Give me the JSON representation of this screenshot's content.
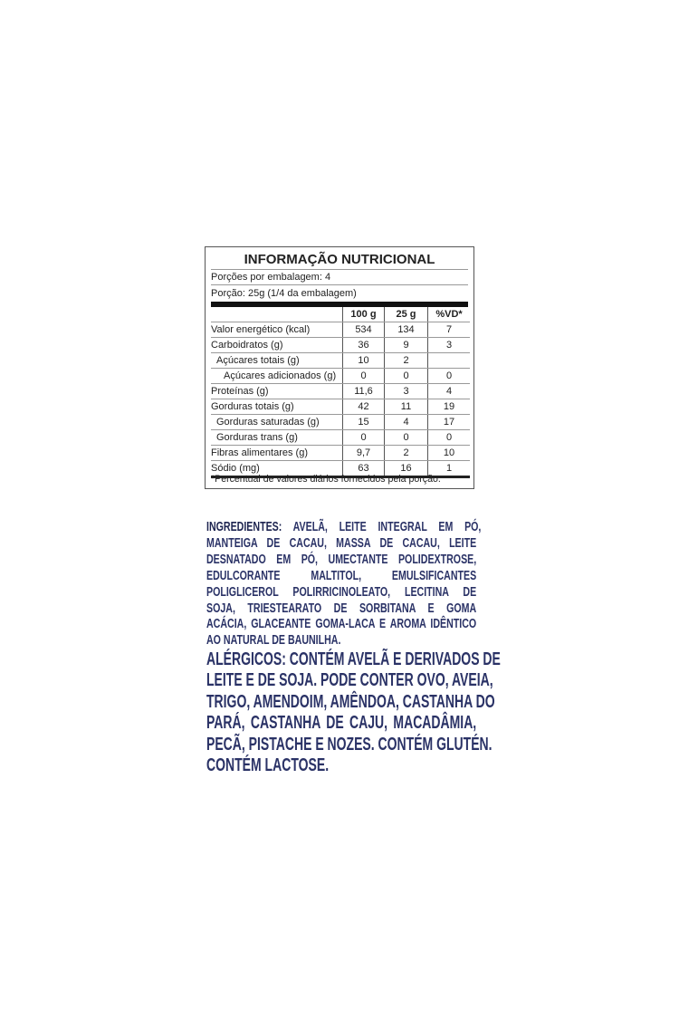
{
  "nutrition": {
    "title": "INFORMAÇÃO NUTRICIONAL",
    "servings_per_package": "Porções por embalagem: 4",
    "serving_size": "Porção: 25g (1/4 da embalagem)",
    "headers": [
      "",
      "100 g",
      "25 g",
      "%VD*"
    ],
    "rows": [
      {
        "name": "Valor energético (kcal)",
        "indent": 0,
        "v100": "534",
        "v25": "134",
        "vd": "7"
      },
      {
        "name": "Carboidratos (g)",
        "indent": 0,
        "v100": "36",
        "v25": "9",
        "vd": "3"
      },
      {
        "name": "Açúcares totais (g)",
        "indent": 1,
        "v100": "10",
        "v25": "2",
        "vd": ""
      },
      {
        "name": "Açúcares adicionados (g)",
        "indent": 2,
        "v100": "0",
        "v25": "0",
        "vd": "0"
      },
      {
        "name": "Proteínas (g)",
        "indent": 0,
        "v100": "11,6",
        "v25": "3",
        "vd": "4"
      },
      {
        "name": "Gorduras totais (g)",
        "indent": 0,
        "v100": "42",
        "v25": "11",
        "vd": "19"
      },
      {
        "name": "Gorduras saturadas (g)",
        "indent": 1,
        "v100": "15",
        "v25": "4",
        "vd": "17"
      },
      {
        "name": "Gorduras trans (g)",
        "indent": 1,
        "v100": "0",
        "v25": "0",
        "vd": "0"
      },
      {
        "name": "Fibras alimentares (g)",
        "indent": 0,
        "v100": "9,7",
        "v25": "2",
        "vd": "10"
      },
      {
        "name": "Sódio (mg)",
        "indent": 0,
        "v100": "63",
        "v25": "16",
        "vd": "1"
      }
    ],
    "footnote": "*Percentual de valores diários fornecidos pela porção."
  },
  "ingredients": {
    "label": "INGREDIENTES:",
    "lines": [
      " AVELÃ, LEITE INTEGRAL EM PÓ,",
      "MANTEIGA DE CACAU, MASSA DE CACAU, LEITE",
      "DESNATADO EM PÓ, UMECTANTE POLIDEXTROSE,",
      "EDULCORANTE MALTITOL, EMULSIFICANTES",
      "POLIGLICEROL POLIRRICINOLEATO, LECITINA DE",
      "SOJA, TRIESTEARATO DE SORBITANA E GOMA",
      "ACÁCIA, GLACEANTE GOMA-LACA E AROMA IDÊNTICO",
      "AO NATURAL DE BAUNILHA."
    ]
  },
  "allergens": {
    "lines": [
      "ALÉRGICOS: CONTÉM AVELÃ E DERIVADOS DE",
      "LEITE E DE SOJA. PODE CONTER OVO, AVEIA,",
      "TRIGO, AMENDOIM, AMÊNDOA, CASTANHA DO",
      "PARÁ, CASTANHA DE CAJU, MACADÂMIA,",
      "PECÃ, PISTACHE E NOZES.  CONTÉM GLUTÉN.",
      "CONTÉM LACTOSE."
    ]
  },
  "colors": {
    "text_navy": "#2a3266"
  }
}
